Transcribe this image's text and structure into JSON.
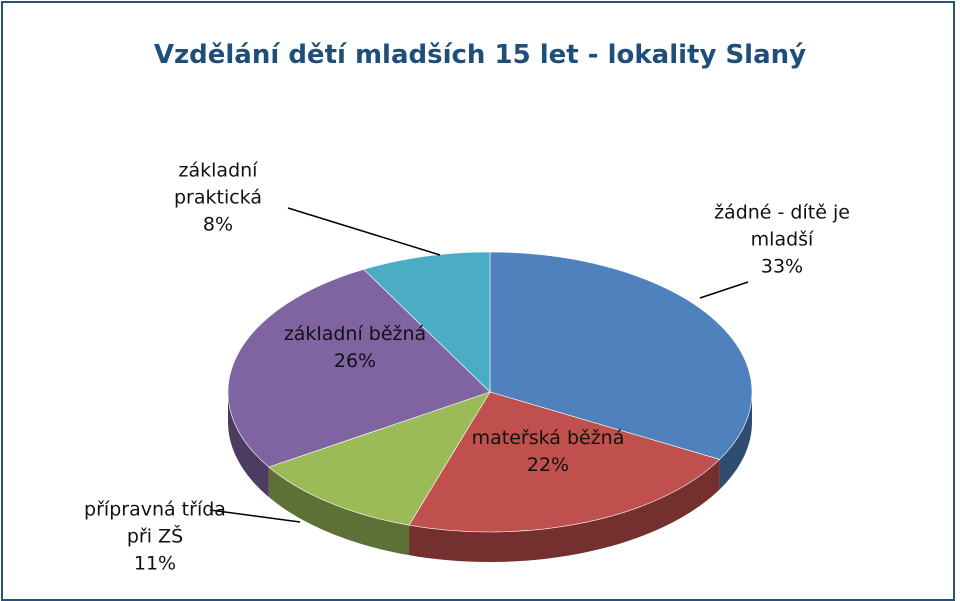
{
  "chart_data": {
    "type": "pie",
    "title": "Vzdělání dětí mladších 15 let - lokality Slaný",
    "categories": [
      "žádné - dítě je mladší",
      "mateřská běžná",
      "přípravná třída při ZŠ",
      "základní běžná",
      "základní praktická"
    ],
    "values": [
      33,
      22,
      11,
      26,
      8
    ],
    "value_labels": [
      "33%",
      "22%",
      "11%",
      "26%",
      "8%"
    ],
    "colors": [
      "#4f81bd",
      "#c0504d",
      "#9bbb59",
      "#8064a2",
      "#4bacc6"
    ]
  }
}
